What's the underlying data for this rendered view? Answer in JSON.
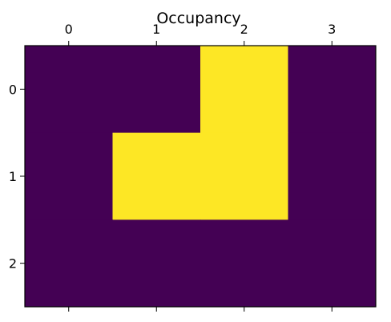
{
  "chart_data": {
    "type": "heatmap",
    "title": "Occupancy",
    "xlabel": "",
    "ylabel": "",
    "x_ticks": [
      "0",
      "1",
      "2",
      "3"
    ],
    "y_ticks": [
      "0",
      "1",
      "2"
    ],
    "x_tick_position": "top",
    "grid": false,
    "colormap": "viridis",
    "colors": {
      "empty": "#440154",
      "occupied": "#fde725"
    },
    "values": [
      [
        0,
        0,
        1,
        0
      ],
      [
        0,
        1,
        1,
        0
      ],
      [
        0,
        0,
        0,
        0
      ]
    ]
  }
}
